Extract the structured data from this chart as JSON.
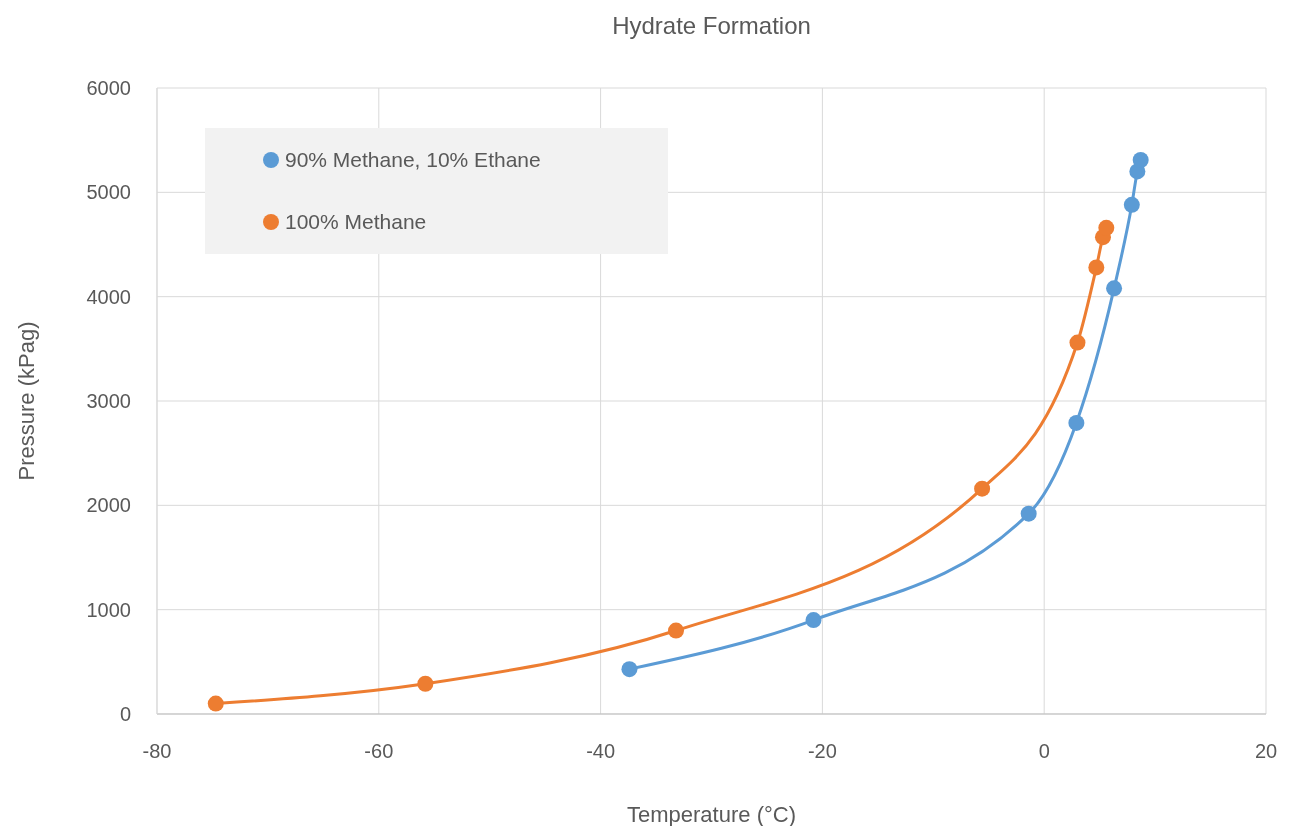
{
  "chart_data": {
    "type": "line",
    "title": "Hydrate Formation",
    "xlabel": "Temperature (°C)",
    "ylabel": "Pressure (kPag)",
    "xlim": [
      -80,
      20
    ],
    "xticks": [
      -80,
      -60,
      -40,
      -20,
      0,
      20
    ],
    "ylim": [
      0,
      6000
    ],
    "yticks": [
      0,
      1000,
      2000,
      3000,
      4000,
      5000,
      6000
    ],
    "grid": true,
    "legend": "top left",
    "marker": "circle",
    "line_style": "solid",
    "series": [
      {
        "name": "90% Methane, 10% Ethane",
        "color": "#5b9bd5",
        "x": [
          -37.4,
          -20.8,
          -1.4,
          2.9,
          6.3,
          7.9,
          8.4,
          8.7
        ],
        "values": [
          430,
          900,
          1920,
          2790,
          4080,
          4880,
          5200,
          5310
        ]
      },
      {
        "name": "100% Methane",
        "color": "#ed7d31",
        "x": [
          -74.7,
          -55.8,
          -33.2,
          -5.6,
          3.0,
          4.7,
          5.3,
          5.6
        ],
        "values": [
          100,
          290,
          800,
          2160,
          3560,
          4280,
          4570,
          4660
        ]
      }
    ]
  }
}
